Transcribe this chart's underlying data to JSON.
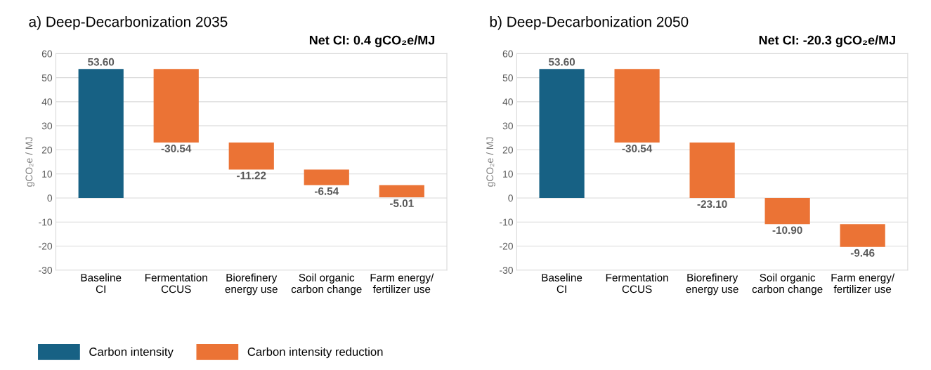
{
  "chart_data": [
    {
      "type": "bar",
      "title": "a) Deep-Decarbonization 2035",
      "subtitle": "Net CI: 0.4 gCO₂e/MJ",
      "ylabel": "gCO₂e / MJ",
      "categories": [
        "Baseline\nCI",
        "Fermentation\nCCUS",
        "Biorefinery\nenergy use",
        "Soil organic\ncarbon change",
        "Farm energy/\nfertilizer use"
      ],
      "series": [
        {
          "name": "Carbon intensity",
          "color": "#176184",
          "base": [
            0,
            null,
            null,
            null,
            null
          ],
          "values": [
            53.6,
            null,
            null,
            null,
            null
          ],
          "value_labels": [
            "53.60",
            null,
            null,
            null,
            null
          ]
        },
        {
          "name": "Carbon intensity reduction",
          "color": "#eb7335",
          "base": [
            null,
            53.6,
            23.06,
            11.84,
            5.3
          ],
          "values": [
            null,
            -30.54,
            -11.22,
            -6.54,
            -5.01
          ],
          "value_labels": [
            null,
            "-30.54",
            "-11.22",
            "-6.54",
            "-5.01"
          ]
        }
      ],
      "ylim": [
        -30,
        60
      ],
      "yticks": [
        -30,
        -20,
        -10,
        0,
        10,
        20,
        30,
        40,
        50,
        60
      ],
      "grid": "y",
      "legend": "bottom"
    },
    {
      "type": "bar",
      "title": "b) Deep-Decarbonization 2050",
      "subtitle": "Net CI: -20.3 gCO₂e/MJ",
      "ylabel": "gCO₂e / MJ",
      "categories": [
        "Baseline\nCI",
        "Fermentation\nCCUS",
        "Biorefinery\nenergy use",
        "Soil organic\ncarbon change",
        "Farm energy/\nfertilizer use"
      ],
      "series": [
        {
          "color": "#176184",
          "base": [
            0,
            null,
            null,
            null,
            null
          ],
          "values": [
            53.6,
            null,
            null,
            null,
            null
          ],
          "value_labels": [
            "53.60",
            null,
            null,
            null,
            null
          ]
        },
        {
          "color": "#eb7335",
          "base": [
            null,
            53.6,
            23.06,
            0,
            -10.9
          ],
          "values": [
            null,
            -30.54,
            -23.1,
            -10.9,
            -9.46
          ],
          "value_labels": [
            null,
            "-30.54",
            "-23.10",
            "-10.90",
            "-9.46"
          ]
        }
      ],
      "ylim": [
        -30,
        60
      ],
      "yticks": [
        -30,
        -20,
        -10,
        0,
        10,
        20,
        30,
        40,
        50,
        60
      ],
      "grid": "y"
    }
  ]
}
